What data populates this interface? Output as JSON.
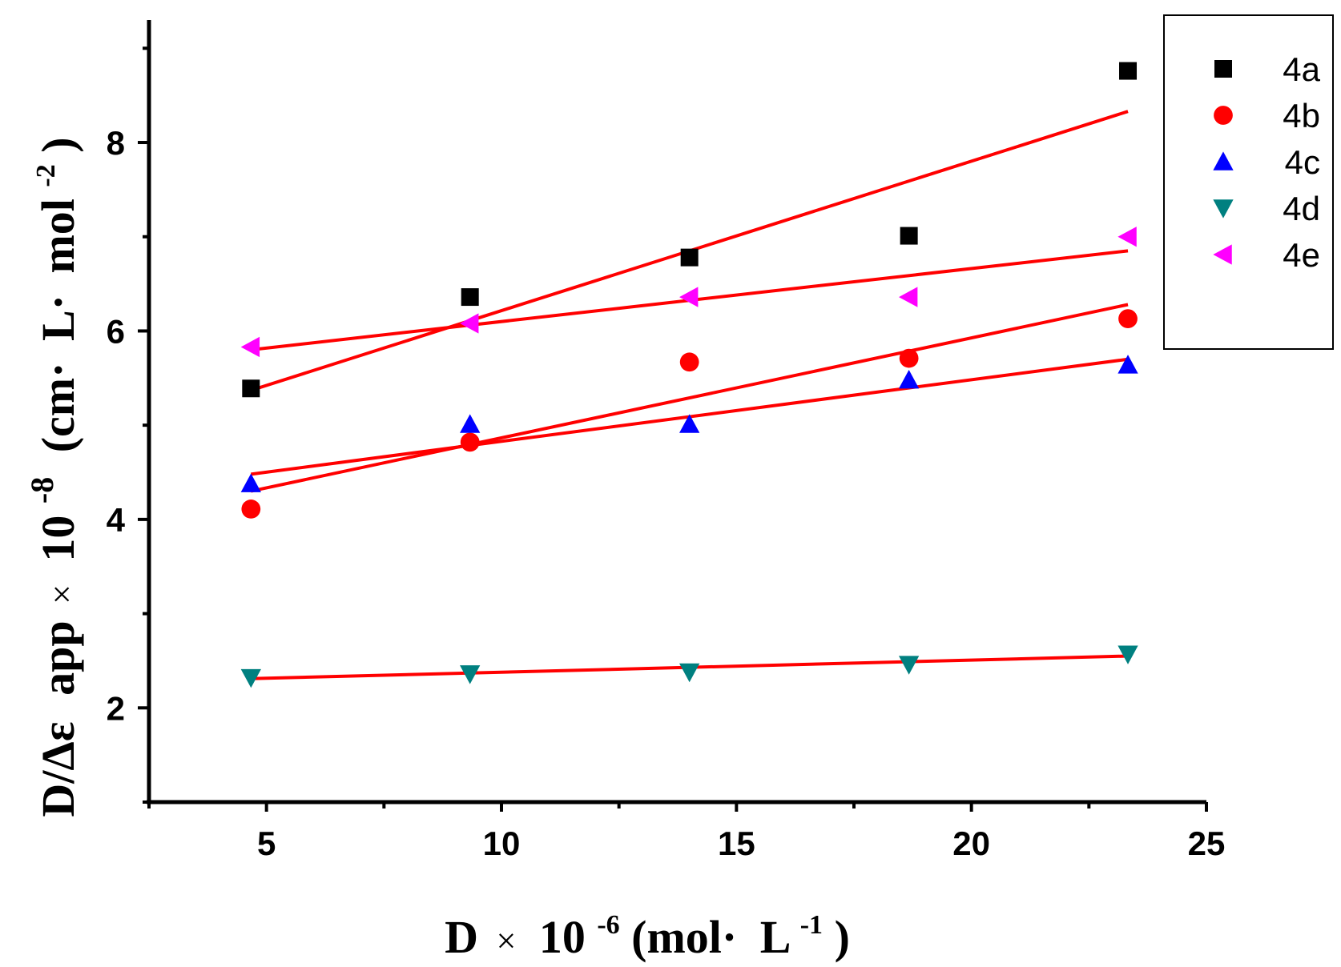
{
  "chart_data": {
    "type": "scatter",
    "title": "",
    "xlabel": {
      "prefix": "D",
      "times": "×",
      "base": "10",
      "exp": "-6",
      "unit_open": "(mol·",
      "unit_mid": "L",
      "unit_exp": "-1",
      "unit_close": ")"
    },
    "ylabel": {
      "prefix": "D/Δε",
      "sub": "app",
      "times": "×",
      "base": "10",
      "exp": "-8",
      "unit_open": "(cm·",
      "unit_mid": "L·",
      "unit_mol": "mol",
      "unit_exp": "-2",
      "unit_close": ")"
    },
    "xlim": [
      2.5,
      25
    ],
    "ylim": [
      1,
      9.3
    ],
    "x_ticks": [
      5,
      10,
      15,
      20,
      25
    ],
    "y_ticks": [
      2,
      4,
      6,
      8
    ],
    "x_minor": [
      2.5,
      7.5,
      12.5,
      17.5,
      22.5
    ],
    "y_minor": [
      1,
      3,
      5,
      7,
      9
    ],
    "legend_position": "top-right",
    "fit_color": "#ff0000",
    "series": [
      {
        "name": "4a",
        "marker": "square",
        "color": "#000000",
        "x": [
          4.67,
          9.33,
          14.0,
          18.67,
          23.33
        ],
        "y": [
          5.39,
          6.36,
          6.78,
          7.01,
          8.76
        ],
        "fit": [
          [
            4.67,
            5.37
          ],
          [
            23.33,
            8.33
          ]
        ]
      },
      {
        "name": "4b",
        "marker": "circle",
        "color": "#ff0000",
        "x": [
          4.67,
          9.33,
          14.0,
          18.67,
          23.33
        ],
        "y": [
          4.11,
          4.82,
          5.67,
          5.71,
          6.13
        ],
        "fit": [
          [
            4.67,
            4.3
          ],
          [
            23.33,
            6.28
          ]
        ]
      },
      {
        "name": "4c",
        "marker": "triangle-up",
        "color": "#0000ff",
        "x": [
          4.67,
          9.33,
          14.0,
          18.67,
          23.33
        ],
        "y": [
          4.38,
          5.01,
          5.01,
          5.48,
          5.64
        ],
        "fit": [
          [
            4.67,
            4.48
          ],
          [
            23.33,
            5.7
          ]
        ]
      },
      {
        "name": "4d",
        "marker": "triangle-down",
        "color": "#008080",
        "x": [
          4.67,
          9.33,
          14.0,
          18.67,
          23.33
        ],
        "y": [
          2.32,
          2.36,
          2.38,
          2.46,
          2.57
        ],
        "fit": [
          [
            4.67,
            2.31
          ],
          [
            23.33,
            2.55
          ]
        ]
      },
      {
        "name": "4e",
        "marker": "triangle-left",
        "color": "#ff00ff",
        "x": [
          4.67,
          9.33,
          14.0,
          18.67,
          23.33
        ],
        "y": [
          5.83,
          6.08,
          6.36,
          6.36,
          7.0
        ],
        "fit": [
          [
            4.67,
            5.8
          ],
          [
            23.33,
            6.85
          ]
        ]
      }
    ]
  }
}
